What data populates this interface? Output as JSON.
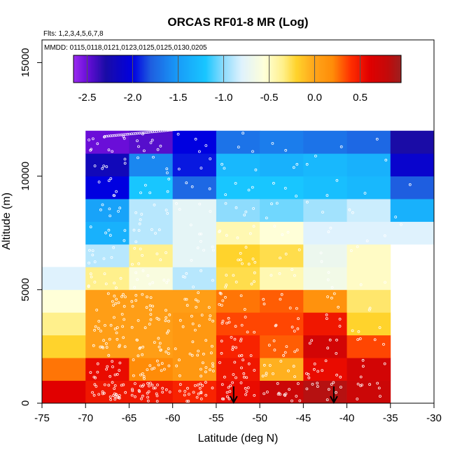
{
  "chart_data": {
    "type": "heatmap",
    "title": "ORCAS RF01-8 MR (Log)",
    "subtitle_flights": "Flts: 1,2,3,4,5,6,7,8",
    "subtitle_dates": "MMDD: 0115,0118,0121,0123,0125,0125,0130,0205",
    "xlabel": "Latitude (deg N)",
    "ylabel": "Altitude (m)",
    "xlim": [
      -75,
      -30
    ],
    "ylim": [
      0,
      16000
    ],
    "x_ticks": [
      -75,
      -70,
      -65,
      -60,
      -55,
      -50,
      -45,
      -40,
      -35,
      -30
    ],
    "y_ticks": [
      0,
      5000,
      10000,
      15000
    ],
    "colorbar": {
      "vmin": -2.65,
      "vmax": 0.95,
      "ticks": [
        -2.5,
        -2.0,
        -1.5,
        -1.0,
        -0.5,
        0.0,
        0.5
      ],
      "tick_labels": [
        "-2.5",
        "-2.0",
        "-1.5",
        "-1.0",
        "-0.5",
        "0.0",
        "0.5"
      ],
      "stops": [
        {
          "v": -2.65,
          "c": "#9a2cf0"
        },
        {
          "v": -2.5,
          "c": "#6a0ed8"
        },
        {
          "v": -2.3,
          "c": "#1a0ca6"
        },
        {
          "v": -2.0,
          "c": "#0000e0"
        },
        {
          "v": -1.8,
          "c": "#1e5ee0"
        },
        {
          "v": -1.5,
          "c": "#189cf8"
        },
        {
          "v": -1.2,
          "c": "#18c6ff"
        },
        {
          "v": -1.0,
          "c": "#8edcfd"
        },
        {
          "v": -0.8,
          "c": "#dff2fd"
        },
        {
          "v": -0.55,
          "c": "#ffffd8"
        },
        {
          "v": -0.35,
          "c": "#fff08c"
        },
        {
          "v": -0.2,
          "c": "#ffd32c"
        },
        {
          "v": 0.0,
          "c": "#ffa41a"
        },
        {
          "v": 0.2,
          "c": "#ff8c08"
        },
        {
          "v": 0.4,
          "c": "#ff2e00"
        },
        {
          "v": 0.6,
          "c": "#e10000"
        },
        {
          "v": 0.8,
          "c": "#c30a0a"
        },
        {
          "v": 0.95,
          "c": "#9c1f1f"
        }
      ]
    },
    "lat_bin_edges": [
      -75,
      -70,
      -65,
      -60,
      -55,
      -50,
      -45,
      -40,
      -35,
      -30
    ],
    "alt_bin_edges": [
      0,
      1000,
      2000,
      3000,
      4000,
      5000,
      6000,
      7000,
      8000,
      9000,
      10000,
      11000,
      12000
    ],
    "values_by_altitude_bin": [
      [
        0.6,
        0.5,
        0.5,
        0.45,
        0.55,
        0.75,
        0.85,
        0.75,
        null
      ],
      [
        0.25,
        0.55,
        0.2,
        0.1,
        0.5,
        -0.05,
        0.55,
        0.7,
        null
      ],
      [
        -0.2,
        0.05,
        0.05,
        0.1,
        0.45,
        0.3,
        0.7,
        0.35,
        null
      ],
      [
        -0.35,
        0.05,
        0.05,
        0.1,
        0.35,
        0.35,
        0.5,
        -0.2,
        null
      ],
      [
        -0.55,
        0.05,
        0.05,
        0.05,
        0.25,
        0.3,
        0.15,
        -0.3,
        null
      ],
      [
        -0.8,
        -0.35,
        -0.6,
        -0.9,
        -0.25,
        -0.45,
        -0.65,
        -0.5,
        null
      ],
      [
        null,
        -0.9,
        -0.35,
        -0.75,
        -0.2,
        -0.25,
        -0.7,
        -0.5,
        null
      ],
      [
        null,
        -1.35,
        -0.9,
        -0.75,
        -0.45,
        -0.55,
        -0.8,
        -0.8,
        -0.8
      ],
      [
        null,
        -1.45,
        -0.9,
        -0.75,
        -1.0,
        -1.05,
        -0.95,
        -0.85,
        -1.35
      ],
      [
        null,
        -2.0,
        -1.2,
        -1.75,
        -1.2,
        -1.2,
        -1.25,
        -1.3,
        -1.8
      ],
      [
        null,
        -2.2,
        -1.6,
        -1.95,
        -1.3,
        -1.35,
        -1.3,
        -1.35,
        -2.1
      ],
      [
        null,
        -2.5,
        -2.45,
        -2.0,
        -1.7,
        -1.65,
        -1.7,
        -1.75,
        -2.3
      ]
    ],
    "markers": [
      {
        "lat": -53,
        "label": "arrow"
      },
      {
        "lat": -41.5,
        "label": "arrow"
      }
    ]
  }
}
